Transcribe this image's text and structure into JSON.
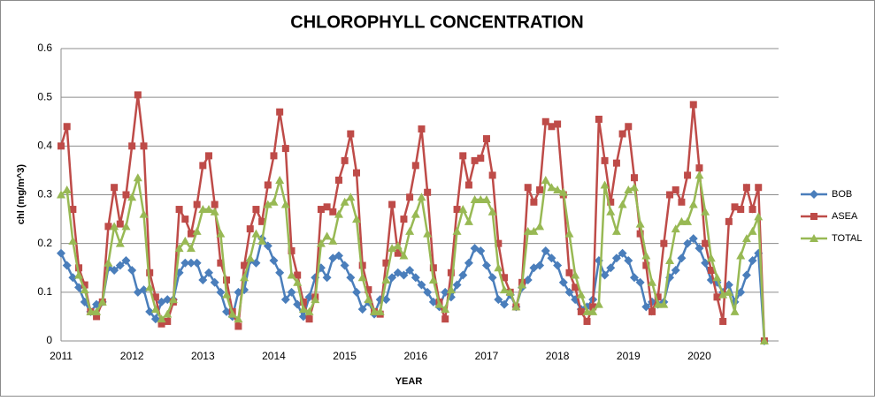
{
  "chart_data": {
    "type": "line",
    "title": "CHLOROPHYLL CONCENTRATION",
    "xlabel": "YEAR",
    "ylabel": "chl  (mg/m^3)",
    "categories": [
      "2011",
      null,
      null,
      null,
      null,
      null,
      null,
      null,
      null,
      null,
      null,
      null,
      "2012",
      null,
      null,
      null,
      null,
      null,
      null,
      null,
      null,
      null,
      null,
      null,
      "2013",
      null,
      null,
      null,
      null,
      null,
      null,
      null,
      null,
      null,
      null,
      null,
      "2014",
      null,
      null,
      null,
      null,
      null,
      null,
      null,
      null,
      null,
      null,
      null,
      "2015",
      null,
      null,
      null,
      null,
      null,
      null,
      null,
      null,
      null,
      null,
      null,
      "2016",
      null,
      null,
      null,
      null,
      null,
      null,
      null,
      null,
      null,
      null,
      null,
      "2017",
      null,
      null,
      null,
      null,
      null,
      null,
      null,
      null,
      null,
      null,
      null,
      "2018",
      null,
      null,
      null,
      null,
      null,
      null,
      null,
      null,
      null,
      null,
      null,
      "2019",
      null,
      null,
      null,
      null,
      null,
      null,
      null,
      null,
      null,
      null,
      null,
      "2020",
      null,
      null,
      null,
      null,
      null,
      null,
      null,
      null,
      null,
      null,
      null
    ],
    "series": [
      {
        "name": "BOB",
        "color": "#4a7ebb",
        "marker": "diamond",
        "values": [
          0.18,
          0.155,
          0.13,
          0.11,
          0.08,
          0.06,
          0.075,
          0.08,
          0.15,
          0.145,
          0.155,
          0.165,
          0.145,
          0.1,
          0.105,
          0.06,
          0.045,
          0.08,
          0.085,
          0.085,
          0.14,
          0.16,
          0.16,
          0.16,
          0.125,
          0.14,
          0.12,
          0.1,
          0.06,
          0.05,
          0.1,
          0.105,
          0.165,
          0.16,
          0.21,
          0.195,
          0.165,
          0.14,
          0.085,
          0.1,
          0.075,
          0.05,
          0.09,
          0.13,
          0.15,
          0.13,
          0.17,
          0.175,
          0.155,
          0.13,
          0.1,
          0.065,
          0.08,
          0.055,
          0.085,
          0.085,
          0.13,
          0.14,
          0.135,
          0.145,
          0.13,
          0.115,
          0.1,
          0.08,
          0.07,
          0.1,
          0.09,
          0.115,
          0.135,
          0.16,
          0.19,
          0.185,
          0.155,
          0.13,
          0.085,
          0.075,
          0.095,
          0.07,
          0.11,
          0.125,
          0.15,
          0.155,
          0.185,
          0.17,
          0.155,
          0.12,
          0.1,
          0.085,
          0.065,
          0.07,
          0.085,
          0.165,
          0.135,
          0.15,
          0.17,
          0.18,
          0.165,
          0.13,
          0.12,
          0.07,
          0.08,
          0.075,
          0.08,
          0.13,
          0.145,
          0.17,
          0.2,
          0.21,
          0.19,
          0.16,
          0.125,
          0.12,
          0.1,
          0.115,
          0.08,
          0.1,
          0.135,
          0.165,
          0.18,
          0
        ]
      },
      {
        "name": "ASEA",
        "color": "#be4b48",
        "marker": "square",
        "values": [
          0.4,
          0.44,
          0.27,
          0.15,
          0.115,
          0.06,
          0.05,
          0.08,
          0.235,
          0.315,
          0.24,
          0.3,
          0.4,
          0.505,
          0.4,
          0.14,
          0.09,
          0.035,
          0.04,
          0.08,
          0.27,
          0.25,
          0.22,
          0.28,
          0.36,
          0.38,
          0.28,
          0.16,
          0.125,
          0.06,
          0.03,
          0.155,
          0.23,
          0.27,
          0.245,
          0.32,
          0.38,
          0.47,
          0.395,
          0.185,
          0.135,
          0.08,
          0.045,
          0.09,
          0.27,
          0.275,
          0.265,
          0.33,
          0.37,
          0.425,
          0.345,
          0.155,
          0.105,
          0.06,
          0.055,
          0.16,
          0.28,
          0.18,
          0.25,
          0.295,
          0.36,
          0.435,
          0.305,
          0.15,
          0.08,
          0.045,
          0.14,
          0.27,
          0.38,
          0.32,
          0.37,
          0.375,
          0.415,
          0.34,
          0.2,
          0.13,
          0.1,
          0.07,
          0.12,
          0.315,
          0.285,
          0.31,
          0.45,
          0.44,
          0.445,
          0.3,
          0.14,
          0.11,
          0.06,
          0.04,
          0.07,
          0.455,
          0.37,
          0.285,
          0.365,
          0.425,
          0.44,
          0.335,
          0.22,
          0.155,
          0.06,
          0.09,
          0.2,
          0.3,
          0.31,
          0.285,
          0.34,
          0.485,
          0.355,
          0.2,
          0.145,
          0.09,
          0.04,
          0.245,
          0.275,
          0.27,
          0.315,
          0.27,
          0.315,
          0
        ]
      },
      {
        "name": "TOTAL",
        "color": "#98b954",
        "marker": "triangle",
        "values": [
          0.3,
          0.31,
          0.205,
          0.135,
          0.105,
          0.06,
          0.06,
          0.08,
          0.16,
          0.235,
          0.2,
          0.235,
          0.295,
          0.335,
          0.26,
          0.11,
          0.065,
          0.045,
          0.055,
          0.085,
          0.19,
          0.205,
          0.19,
          0.225,
          0.27,
          0.27,
          0.265,
          0.22,
          0.095,
          0.055,
          0.045,
          0.13,
          0.17,
          0.22,
          0.205,
          0.28,
          0.285,
          0.33,
          0.28,
          0.135,
          0.12,
          0.065,
          0.06,
          0.085,
          0.2,
          0.215,
          0.205,
          0.26,
          0.285,
          0.295,
          0.25,
          0.13,
          0.085,
          0.06,
          0.06,
          0.125,
          0.19,
          0.195,
          0.175,
          0.225,
          0.26,
          0.295,
          0.22,
          0.125,
          0.075,
          0.065,
          0.105,
          0.225,
          0.27,
          0.245,
          0.29,
          0.29,
          0.29,
          0.265,
          0.15,
          0.105,
          0.1,
          0.07,
          0.115,
          0.225,
          0.225,
          0.235,
          0.33,
          0.315,
          0.31,
          0.305,
          0.22,
          0.135,
          0.095,
          0.06,
          0.06,
          0.075,
          0.32,
          0.265,
          0.225,
          0.28,
          0.31,
          0.315,
          0.24,
          0.175,
          0.12,
          0.075,
          0.075,
          0.165,
          0.23,
          0.245,
          0.245,
          0.28,
          0.34,
          0.265,
          0.17,
          0.13,
          0.095,
          0.1,
          0.06,
          0.175,
          0.21,
          0.225,
          0.255,
          0
        ]
      }
    ],
    "ylim": [
      0,
      0.6
    ],
    "yticks": [
      0,
      0.1,
      0.2,
      0.3,
      0.4,
      0.5,
      0.6
    ],
    "grid": true,
    "legend": "right"
  }
}
